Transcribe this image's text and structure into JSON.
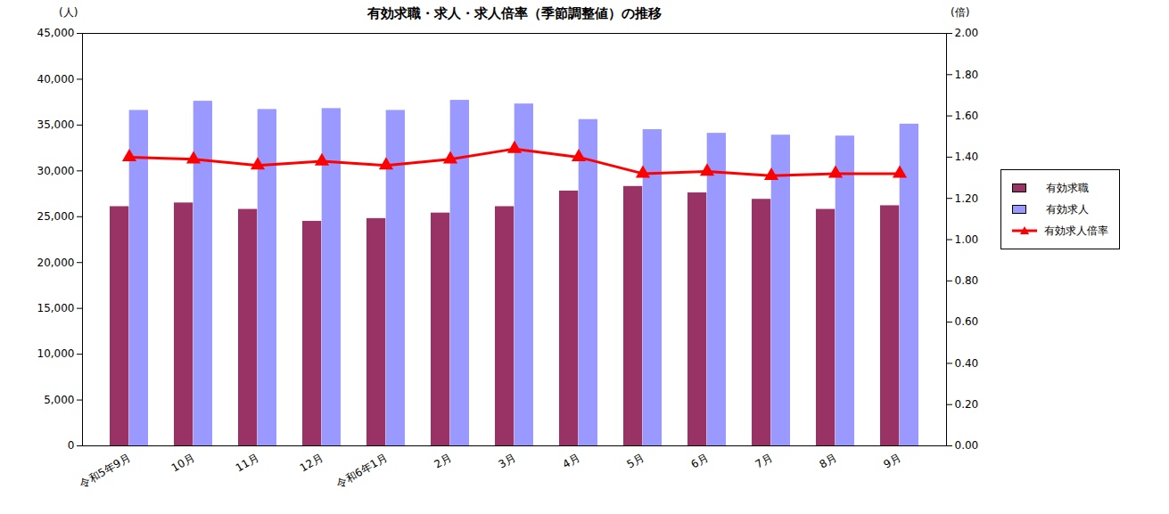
{
  "chart_data": {
    "type": "bar",
    "title": "有効求職・求人・求人倍率（季節調整値）の推移",
    "y_label": "(人)",
    "y2_label": "(倍)",
    "categories": [
      "令和5年9月",
      "10月",
      "11月",
      "12月",
      "令和6年1月",
      "2月",
      "3月",
      "4月",
      "5月",
      "6月",
      "7月",
      "8月",
      "9月"
    ],
    "series": [
      {
        "name": "有効求職",
        "type": "bar",
        "color": "#993366",
        "values": [
          26100,
          26500,
          25800,
          24500,
          24800,
          25400,
          26100,
          27800,
          28300,
          27600,
          26900,
          25800,
          26200
        ]
      },
      {
        "name": "有効求人",
        "type": "bar",
        "color": "#9999FF",
        "values": [
          36600,
          37600,
          36700,
          36800,
          36600,
          37700,
          37300,
          35600,
          34500,
          34100,
          33900,
          33800,
          35100
        ]
      },
      {
        "name": "有効求人倍率",
        "type": "line",
        "axis": "y2",
        "color": "#FF0000",
        "marker": "triangle",
        "line_style": "solid",
        "values": [
          1.4,
          1.39,
          1.36,
          1.38,
          1.36,
          1.39,
          1.44,
          1.4,
          1.32,
          1.33,
          1.31,
          1.32,
          1.32
        ]
      }
    ],
    "ylim": [
      0,
      45000
    ],
    "yticks": [
      0,
      {
        "value": 5000,
        "label": "5,000"
      },
      {
        "value": 10000,
        "label": "10,000"
      },
      {
        "value": 15000,
        "label": "15,000"
      },
      {
        "value": 20000,
        "label": "20,000"
      },
      {
        "value": 25000,
        "label": "25,000"
      },
      {
        "value": 30000,
        "label": "30,000"
      },
      {
        "value": 35000,
        "label": "35,000"
      },
      {
        "value": 40000,
        "label": "40,000"
      },
      {
        "value": 45000,
        "label": "45,000"
      }
    ],
    "y2lim": [
      0,
      2
    ],
    "y2ticks": [
      {
        "value": 0,
        "label": "0.00"
      },
      {
        "value": 0.2,
        "label": "0.20"
      },
      {
        "value": 0.4,
        "label": "0.40"
      },
      {
        "value": 0.6,
        "label": "0.60"
      },
      {
        "value": 0.8,
        "label": "0.80"
      },
      {
        "value": 1.0,
        "label": "1.00"
      },
      {
        "value": 1.2,
        "label": "1.20"
      },
      {
        "value": 1.4,
        "label": "1.40"
      },
      {
        "value": 1.6,
        "label": "1.60"
      },
      {
        "value": 1.8,
        "label": "1.80"
      },
      {
        "value": 2.0,
        "label": "2.00"
      }
    ],
    "grid": false,
    "legend": "right"
  }
}
